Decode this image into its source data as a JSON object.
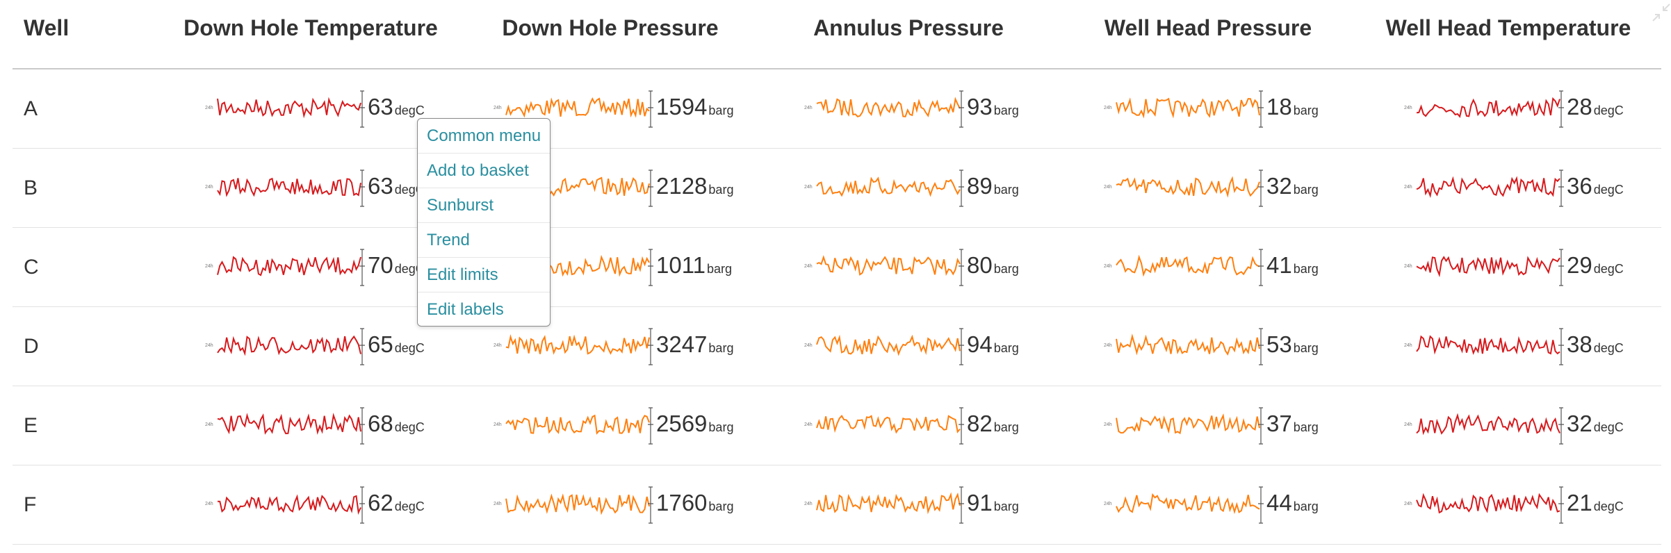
{
  "table": {
    "headers": {
      "well": "Well",
      "columns": [
        "Down Hole Temperature",
        "Down Hole Pressure",
        "Annulus Pressure",
        "Well Head Pressure",
        "Well Head Temperature"
      ]
    },
    "sparkline_start_label": "24h",
    "series_colors": [
      "#d7191c",
      "#ff7f0e",
      "#ff7f0e",
      "#ff7f0e",
      "#d7191c"
    ],
    "rows": [
      {
        "well": "A",
        "values": [
          {
            "value": "63",
            "unit": "degC"
          },
          {
            "value": "1594",
            "unit": "barg"
          },
          {
            "value": "93",
            "unit": "barg"
          },
          {
            "value": "18",
            "unit": "barg"
          },
          {
            "value": "28",
            "unit": "degC"
          }
        ]
      },
      {
        "well": "B",
        "values": [
          {
            "value": "63",
            "unit": "degC"
          },
          {
            "value": "2128",
            "unit": "barg"
          },
          {
            "value": "89",
            "unit": "barg"
          },
          {
            "value": "32",
            "unit": "barg"
          },
          {
            "value": "36",
            "unit": "degC"
          }
        ]
      },
      {
        "well": "C",
        "values": [
          {
            "value": "70",
            "unit": "degC"
          },
          {
            "value": "1011",
            "unit": "barg"
          },
          {
            "value": "80",
            "unit": "barg"
          },
          {
            "value": "41",
            "unit": "barg"
          },
          {
            "value": "29",
            "unit": "degC"
          }
        ]
      },
      {
        "well": "D",
        "values": [
          {
            "value": "65",
            "unit": "degC"
          },
          {
            "value": "3247",
            "unit": "barg"
          },
          {
            "value": "94",
            "unit": "barg"
          },
          {
            "value": "53",
            "unit": "barg"
          },
          {
            "value": "38",
            "unit": "degC"
          }
        ]
      },
      {
        "well": "E",
        "values": [
          {
            "value": "68",
            "unit": "degC"
          },
          {
            "value": "2569",
            "unit": "barg"
          },
          {
            "value": "82",
            "unit": "barg"
          },
          {
            "value": "37",
            "unit": "barg"
          },
          {
            "value": "32",
            "unit": "degC"
          }
        ]
      },
      {
        "well": "F",
        "values": [
          {
            "value": "62",
            "unit": "degC"
          },
          {
            "value": "1760",
            "unit": "barg"
          },
          {
            "value": "91",
            "unit": "barg"
          },
          {
            "value": "44",
            "unit": "barg"
          },
          {
            "value": "21",
            "unit": "degC"
          }
        ]
      }
    ]
  },
  "context_menu": {
    "items": [
      "Common menu",
      "Add to basket",
      "Sunburst",
      "Trend",
      "Edit limits",
      "Edit labels"
    ]
  },
  "icons": {
    "expand": "collapse-arrows-icon"
  }
}
